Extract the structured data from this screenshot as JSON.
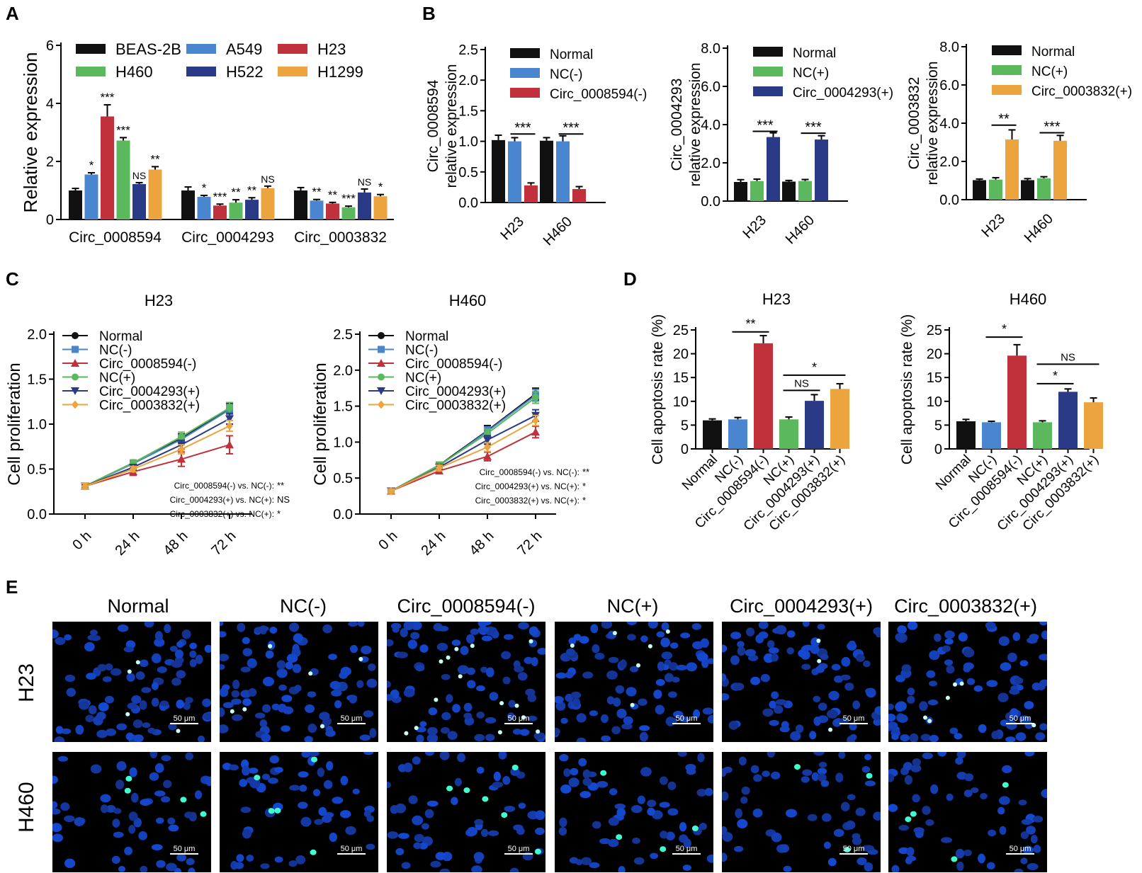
{
  "colors": {
    "black": "#111111",
    "blue": "#4a86d0",
    "red": "#c0313c",
    "green": "#5cb85c",
    "navy": "#2b3a87",
    "orange": "#eca43f",
    "nucleus": "#2a3fc0",
    "apoptotic": "#3fffd0"
  },
  "panel_letters": [
    "A",
    "B",
    "C",
    "D",
    "E"
  ],
  "chart_data": [
    {
      "id": "A",
      "type": "bar",
      "ylabel": "Relative  expression",
      "ylim": [
        0,
        6
      ],
      "yticks": [
        "0",
        "2",
        "4",
        "6"
      ],
      "legend": [
        "BEAS-2B",
        "A549",
        "H23",
        "H460",
        "H522",
        "H1299"
      ],
      "legend_order": [
        0,
        3,
        1,
        4,
        2,
        5
      ],
      "groups": [
        "Circ_0008594",
        "Circ_0004293",
        "Circ_0003832"
      ],
      "series": [
        {
          "name": "BEAS-2B",
          "color": "black",
          "values": [
            1.0,
            1.0,
            1.0
          ],
          "err": [
            0.07,
            0.12,
            0.1
          ],
          "sig": [
            "",
            "",
            ""
          ]
        },
        {
          "name": "A549",
          "color": "blue",
          "values": [
            1.55,
            0.78,
            0.65
          ],
          "err": [
            0.06,
            0.05,
            0.04
          ],
          "sig": [
            "*",
            "*",
            "**"
          ]
        },
        {
          "name": "H23",
          "color": "red",
          "values": [
            3.55,
            0.48,
            0.55
          ],
          "err": [
            0.4,
            0.05,
            0.04
          ],
          "sig": [
            "***",
            "***",
            "**"
          ]
        },
        {
          "name": "H460",
          "color": "green",
          "values": [
            2.72,
            0.58,
            0.42
          ],
          "err": [
            0.1,
            0.1,
            0.04
          ],
          "sig": [
            "***",
            "**",
            "***"
          ]
        },
        {
          "name": "H522",
          "color": "navy",
          "values": [
            1.22,
            0.68,
            0.93
          ],
          "err": [
            0.05,
            0.07,
            0.12
          ],
          "sig": [
            "NS",
            "**",
            "NS"
          ]
        },
        {
          "name": "H1299",
          "color": "orange",
          "values": [
            1.72,
            1.08,
            0.8
          ],
          "err": [
            0.1,
            0.07,
            0.06
          ],
          "sig": [
            "**",
            "NS",
            "*"
          ]
        }
      ]
    },
    {
      "id": "B1",
      "type": "bar",
      "ylabel_lines": [
        "Circ_0008594",
        "relative  expression"
      ],
      "ylim": [
        0,
        2.5
      ],
      "yticks": [
        "0.0",
        "0.5",
        "1.0",
        "1.5",
        "2.0",
        "2.5"
      ],
      "categories": [
        "H23",
        "H460"
      ],
      "series": [
        {
          "name": "Normal",
          "color": "black",
          "values": [
            1.02,
            1.01
          ],
          "err": [
            0.08,
            0.05
          ]
        },
        {
          "name": "NC(-)",
          "color": "blue",
          "values": [
            1.0,
            1.0
          ],
          "err": [
            0.06,
            0.09
          ]
        },
        {
          "name": "Circ_0008594(-)",
          "color": "red",
          "values": [
            0.28,
            0.22
          ],
          "err": [
            0.04,
            0.04
          ]
        }
      ],
      "sig": [
        {
          "cat": 0,
          "from": 1,
          "to": 2,
          "label": "***",
          "y": 1.12
        },
        {
          "cat": 1,
          "from": 1,
          "to": 2,
          "label": "***",
          "y": 1.12
        }
      ]
    },
    {
      "id": "B2",
      "type": "bar",
      "ylabel_lines": [
        "Circ_0004293",
        "relative  expression"
      ],
      "ylim": [
        0,
        8
      ],
      "yticks": [
        "0.0",
        "2.0",
        "4.0",
        "6.0",
        "8.0"
      ],
      "categories": [
        "H23",
        "H460"
      ],
      "series": [
        {
          "name": "Normal",
          "color": "black",
          "values": [
            1.0,
            1.02
          ],
          "err": [
            0.12,
            0.06
          ]
        },
        {
          "name": "NC(+)",
          "color": "green",
          "values": [
            1.05,
            1.05
          ],
          "err": [
            0.1,
            0.08
          ]
        },
        {
          "name": "Circ_0004293(+)",
          "color": "navy",
          "values": [
            3.35,
            3.22
          ],
          "err": [
            0.22,
            0.2
          ]
        }
      ],
      "sig": [
        {
          "cat": 0,
          "from": 1,
          "to": 2,
          "label": "***",
          "y": 3.65
        },
        {
          "cat": 1,
          "from": 1,
          "to": 2,
          "label": "***",
          "y": 3.55
        }
      ]
    },
    {
      "id": "B3",
      "type": "bar",
      "ylabel_lines": [
        "Circ_0003832",
        "relative  expression"
      ],
      "ylim": [
        0,
        8
      ],
      "yticks": [
        "0.0",
        "2.0",
        "4.0",
        "6.0",
        "8.0"
      ],
      "categories": [
        "H23",
        "H460"
      ],
      "series": [
        {
          "name": "Normal",
          "color": "black",
          "values": [
            1.02,
            1.02
          ],
          "err": [
            0.06,
            0.08
          ]
        },
        {
          "name": "NC(+)",
          "color": "green",
          "values": [
            1.05,
            1.12
          ],
          "err": [
            0.1,
            0.08
          ]
        },
        {
          "name": "Circ_0003832(+)",
          "color": "orange",
          "values": [
            3.15,
            3.08
          ],
          "err": [
            0.5,
            0.28
          ]
        }
      ],
      "sig": [
        {
          "cat": 0,
          "from": 1,
          "to": 2,
          "label": "**",
          "y": 3.9
        },
        {
          "cat": 1,
          "from": 1,
          "to": 2,
          "label": "***",
          "y": 3.5
        }
      ]
    },
    {
      "id": "C1",
      "type": "line",
      "title": "H23",
      "ylabel": "Cell proliferation",
      "ylim": [
        0,
        2.0
      ],
      "yticks": [
        "0.0",
        "0.5",
        "1.0",
        "1.5",
        "2.0"
      ],
      "x": [
        "0 h",
        "24 h",
        "48 h",
        "72 h"
      ],
      "series": [
        {
          "name": "Normal",
          "color": "black",
          "marker": "circle",
          "values": [
            0.31,
            0.57,
            0.84,
            1.17
          ],
          "err": [
            0.03,
            0.03,
            0.05,
            0.06
          ]
        },
        {
          "name": "NC(-)",
          "color": "blue",
          "marker": "square",
          "values": [
            0.31,
            0.56,
            0.83,
            1.16
          ],
          "err": [
            0.03,
            0.03,
            0.05,
            0.05
          ]
        },
        {
          "name": "Circ_0008594(-)",
          "color": "red",
          "marker": "triangle",
          "values": [
            0.31,
            0.47,
            0.61,
            0.77
          ],
          "err": [
            0.03,
            0.04,
            0.08,
            0.1
          ]
        },
        {
          "name": "NC(+)",
          "color": "green",
          "marker": "circle",
          "values": [
            0.31,
            0.57,
            0.86,
            1.18
          ],
          "err": [
            0.03,
            0.03,
            0.05,
            0.06
          ]
        },
        {
          "name": "Circ_0004293(+)",
          "color": "navy",
          "marker": "triangle-down",
          "values": [
            0.31,
            0.52,
            0.77,
            1.06
          ],
          "err": [
            0.03,
            0.03,
            0.05,
            0.06
          ]
        },
        {
          "name": "Circ_0003832(+)",
          "color": "orange",
          "marker": "diamond",
          "values": [
            0.31,
            0.5,
            0.72,
            0.98
          ],
          "err": [
            0.03,
            0.03,
            0.05,
            0.06
          ]
        }
      ],
      "annotations": [
        {
          "text": "Circ_0008594(-) vs. NC(-):",
          "sig": "**"
        },
        {
          "text": "Circ_0004293(+) vs. NC(+):",
          "sig": "NS"
        },
        {
          "text": "Circ_0003832(+) vs. NC(+):",
          "sig": "*"
        }
      ]
    },
    {
      "id": "C2",
      "type": "line",
      "title": "H460",
      "ylabel": "Cell proliferation",
      "ylim": [
        0,
        2.5
      ],
      "yticks": [
        "0.0",
        "0.5",
        "1.0",
        "1.5",
        "2.0",
        "2.5"
      ],
      "x": [
        "0 h",
        "24 h",
        "48 h",
        "72 h"
      ],
      "series": [
        {
          "name": "Normal",
          "color": "black",
          "marker": "circle",
          "values": [
            0.32,
            0.68,
            1.16,
            1.67
          ],
          "err": [
            0.03,
            0.04,
            0.07,
            0.08
          ]
        },
        {
          "name": "NC(-)",
          "color": "blue",
          "marker": "square",
          "values": [
            0.32,
            0.67,
            1.15,
            1.65
          ],
          "err": [
            0.03,
            0.04,
            0.06,
            0.08
          ]
        },
        {
          "name": "Circ_0008594(-)",
          "color": "red",
          "marker": "triangle",
          "values": [
            0.32,
            0.6,
            0.8,
            1.14
          ],
          "err": [
            0.03,
            0.04,
            0.06,
            0.08
          ]
        },
        {
          "name": "NC(+)",
          "color": "green",
          "marker": "circle",
          "values": [
            0.32,
            0.68,
            1.12,
            1.62
          ],
          "err": [
            0.03,
            0.04,
            0.06,
            0.08
          ]
        },
        {
          "name": "Circ_0004293(+)",
          "color": "navy",
          "marker": "triangle-down",
          "values": [
            0.32,
            0.65,
            1.03,
            1.37
          ],
          "err": [
            0.03,
            0.04,
            0.06,
            0.08
          ]
        },
        {
          "name": "Circ_0003832(+)",
          "color": "orange",
          "marker": "diamond",
          "values": [
            0.32,
            0.64,
            0.93,
            1.3
          ],
          "err": [
            0.03,
            0.04,
            0.06,
            0.07
          ]
        }
      ],
      "annotations": [
        {
          "text": "Circ_0008594(-) vs. NC(-):",
          "sig": "**"
        },
        {
          "text": "Circ_0004293(+) vs. NC(+):",
          "sig": "*"
        },
        {
          "text": "Circ_0003832(+) vs. NC(+):",
          "sig": "*"
        }
      ]
    },
    {
      "id": "D1",
      "type": "bar",
      "title": "H23",
      "ylabel": "Cell apoptosis rate (%)",
      "ylim": [
        0,
        25
      ],
      "yticks": [
        "0",
        "5",
        "10",
        "15",
        "20",
        "25"
      ],
      "categories": [
        "Normal",
        "NC(-)",
        "Circ_0008594(-)",
        "NC(+)",
        "Circ_0004293(+)",
        "Circ_0003832(+)"
      ],
      "colors": [
        "black",
        "blue",
        "red",
        "green",
        "navy",
        "orange"
      ],
      "values": [
        6.0,
        6.2,
        22.2,
        6.2,
        10.1,
        12.6
      ],
      "err": [
        0.3,
        0.4,
        1.6,
        0.5,
        1.3,
        1.1
      ],
      "sig": [
        {
          "from": 1,
          "to": 2,
          "label": "**",
          "y": 24.6
        },
        {
          "from": 3,
          "to": 4,
          "label": "NS",
          "y": 12.3
        },
        {
          "from": 3,
          "to": 5,
          "label": "*",
          "y": 15.5
        }
      ]
    },
    {
      "id": "D2",
      "type": "bar",
      "title": "H460",
      "ylabel": "Cell apoptosis rate (%)",
      "ylim": [
        0,
        25
      ],
      "yticks": [
        "0",
        "5",
        "10",
        "15",
        "20",
        "25"
      ],
      "categories": [
        "Normal",
        "NC(-)",
        "Circ_0008594(-)",
        "NC(+)",
        "Circ_0004293(+)",
        "Circ_0003832(+)"
      ],
      "colors": [
        "black",
        "blue",
        "red",
        "green",
        "navy",
        "orange"
      ],
      "values": [
        5.8,
        5.6,
        19.6,
        5.6,
        12.0,
        9.8
      ],
      "err": [
        0.4,
        0.2,
        2.3,
        0.3,
        0.6,
        0.9
      ],
      "sig": [
        {
          "from": 1,
          "to": 2,
          "label": "*",
          "y": 23.5
        },
        {
          "from": 3,
          "to": 4,
          "label": "*",
          "y": 13.7
        },
        {
          "from": 3,
          "to": 5,
          "label": "NS",
          "y": 17.8
        }
      ]
    }
  ],
  "panelE": {
    "columns": [
      "Normal",
      "NC(-)",
      "Circ_0008594(-)",
      "NC(+)",
      "Circ_0004293(+)",
      "Circ_0003832(+)"
    ],
    "rows": [
      "H23",
      "H460"
    ],
    "scalebar": "50 μm"
  }
}
